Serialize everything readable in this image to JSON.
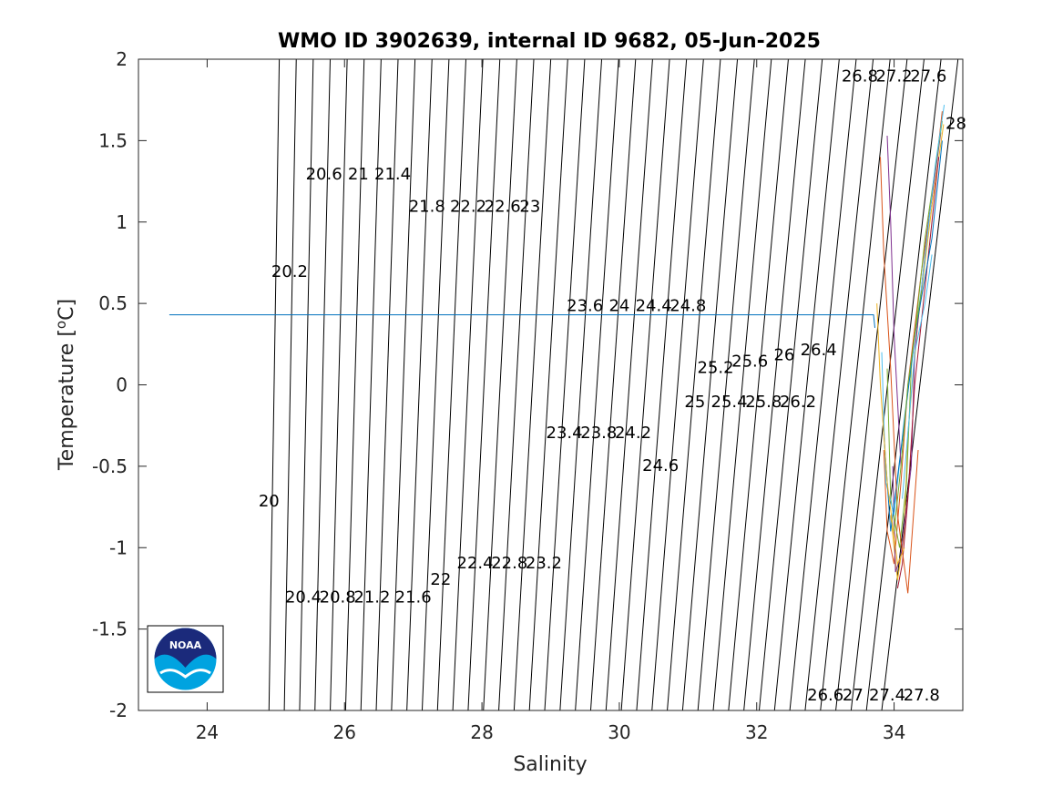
{
  "chart_data": {
    "type": "line",
    "title": "WMO ID 3902639, internal ID 9682, 05-Jun-2025",
    "xlabel": "Salinity",
    "ylabel_main": "Temperature [",
    "ylabel_sup": "o",
    "ylabel_end": "C]",
    "xlim": [
      23,
      35
    ],
    "ylim": [
      -2,
      2
    ],
    "xticks": [
      24,
      26,
      28,
      30,
      32,
      34
    ],
    "yticks": [
      -2,
      -1.5,
      -1,
      -0.5,
      0,
      0.5,
      1,
      1.5,
      2
    ],
    "grid": false,
    "contour_type": "density isopycnals",
    "contour_levels": [
      20,
      20.2,
      20.4,
      20.6,
      20.8,
      21,
      21.2,
      21.4,
      21.6,
      21.8,
      22,
      22.2,
      22.4,
      22.6,
      22.8,
      23,
      23.2,
      23.4,
      23.6,
      23.8,
      24,
      24.2,
      24.4,
      24.6,
      24.8,
      25,
      25.2,
      25.4,
      25.6,
      25.8,
      26,
      26.2,
      26.4,
      26.6,
      26.8,
      27,
      27.2,
      27.4,
      27.6,
      27.8,
      28
    ],
    "contour_labels": [
      {
        "text": "20",
        "s": 24.9,
        "t": -0.72
      },
      {
        "text": "20.2",
        "s": 25.2,
        "t": 0.69
      },
      {
        "text": "20.4",
        "s": 25.4,
        "t": -1.31
      },
      {
        "text": "20.6",
        "s": 25.7,
        "t": 1.29
      },
      {
        "text": "20.8",
        "s": 25.9,
        "t": -1.31
      },
      {
        "text": "21",
        "s": 26.2,
        "t": 1.29
      },
      {
        "text": "21.2",
        "s": 26.4,
        "t": -1.31
      },
      {
        "text": "21.4",
        "s": 26.7,
        "t": 1.29
      },
      {
        "text": "21.6",
        "s": 27.0,
        "t": -1.31
      },
      {
        "text": "21.8",
        "s": 27.2,
        "t": 1.09
      },
      {
        "text": "22",
        "s": 27.4,
        "t": -1.2
      },
      {
        "text": "22.2",
        "s": 27.8,
        "t": 1.09
      },
      {
        "text": "22.4",
        "s": 27.9,
        "t": -1.1
      },
      {
        "text": "22.6",
        "s": 28.3,
        "t": 1.09
      },
      {
        "text": "22.8",
        "s": 28.4,
        "t": -1.1
      },
      {
        "text": "23",
        "s": 28.7,
        "t": 1.09
      },
      {
        "text": "23.2",
        "s": 28.9,
        "t": -1.1
      },
      {
        "text": "23.4",
        "s": 29.2,
        "t": -0.3
      },
      {
        "text": "23.6",
        "s": 29.5,
        "t": 0.48
      },
      {
        "text": "23.8",
        "s": 29.7,
        "t": -0.3
      },
      {
        "text": "24",
        "s": 30.0,
        "t": 0.48
      },
      {
        "text": "24.2",
        "s": 30.2,
        "t": -0.3
      },
      {
        "text": "24.4",
        "s": 30.5,
        "t": 0.48
      },
      {
        "text": "24.6",
        "s": 30.6,
        "t": -0.5
      },
      {
        "text": "24.8",
        "s": 31.0,
        "t": 0.48
      },
      {
        "text": "25",
        "s": 31.1,
        "t": -0.11
      },
      {
        "text": "25.2",
        "s": 31.4,
        "t": 0.1
      },
      {
        "text": "25.4",
        "s": 31.6,
        "t": -0.11
      },
      {
        "text": "25.6",
        "s": 31.9,
        "t": 0.14
      },
      {
        "text": "25.8",
        "s": 32.1,
        "t": -0.11
      },
      {
        "text": "26",
        "s": 32.4,
        "t": 0.18
      },
      {
        "text": "26.2",
        "s": 32.6,
        "t": -0.11
      },
      {
        "text": "26.4",
        "s": 32.9,
        "t": 0.21
      },
      {
        "text": "26.6",
        "s": 33.0,
        "t": -1.91
      },
      {
        "text": "26.8",
        "s": 33.5,
        "t": 1.89
      },
      {
        "text": "27",
        "s": 33.4,
        "t": -1.91
      },
      {
        "text": "27.2",
        "s": 34.0,
        "t": 1.89
      },
      {
        "text": "27.4",
        "s": 33.9,
        "t": -1.91
      },
      {
        "text": "27.6",
        "s": 34.5,
        "t": 1.89
      },
      {
        "text": "27.8",
        "s": 34.4,
        "t": -1.91
      },
      {
        "text": "28",
        "s": 34.9,
        "t": 1.6
      }
    ],
    "series": [
      {
        "color": "#0072bd",
        "x": [
          23.45,
          33.7,
          33.72
        ],
        "y": [
          0.43,
          0.43,
          0.35
        ]
      },
      {
        "color": "#d95319",
        "x": [
          34.7,
          34.6,
          34.4,
          34.2,
          34.1,
          34.0,
          33.9,
          33.85
        ],
        "y": [
          1.68,
          1.3,
          0.7,
          0.0,
          -0.6,
          -1.1,
          -0.9,
          -0.4
        ]
      },
      {
        "color": "#edb120",
        "x": [
          34.72,
          34.55,
          34.35,
          34.2,
          34.15,
          34.05,
          33.95
        ],
        "y": [
          1.6,
          1.1,
          0.4,
          -0.3,
          -0.9,
          -1.2,
          -0.8
        ]
      },
      {
        "color": "#7e2f8e",
        "x": [
          34.68,
          34.5,
          34.3,
          34.25,
          34.1,
          34.02,
          33.98
        ],
        "y": [
          1.55,
          1.0,
          0.2,
          -0.5,
          -1.05,
          -1.15,
          -0.5
        ]
      },
      {
        "color": "#77ac30",
        "x": [
          34.7,
          34.45,
          34.25,
          34.18,
          34.08,
          33.95,
          33.9
        ],
        "y": [
          1.62,
          0.9,
          0.1,
          -0.6,
          -1.0,
          -0.7,
          0.1
        ]
      },
      {
        "color": "#4dbeee",
        "x": [
          34.73,
          34.6,
          34.4,
          34.15,
          34.0,
          33.88,
          33.82
        ],
        "y": [
          1.72,
          1.35,
          0.6,
          -0.2,
          -0.8,
          -0.6,
          0.2
        ]
      },
      {
        "color": "#a2142f",
        "x": [
          34.65,
          34.5,
          34.3,
          34.2,
          34.12,
          34.05
        ],
        "y": [
          1.4,
          0.8,
          0.0,
          -0.7,
          -1.1,
          -1.25
        ]
      },
      {
        "color": "#0072bd",
        "x": [
          34.7,
          34.55,
          34.3,
          34.1,
          33.95,
          33.85
        ],
        "y": [
          1.5,
          0.9,
          0.3,
          -0.4,
          -0.9,
          -0.3
        ]
      },
      {
        "color": "#d95319",
        "x": [
          33.8,
          33.85,
          33.95,
          34.05,
          34.2,
          34.35
        ],
        "y": [
          1.4,
          0.8,
          0.1,
          -0.8,
          -1.28,
          -0.4
        ]
      },
      {
        "color": "#edb120",
        "x": [
          33.75,
          33.8,
          33.9,
          34.05,
          34.15
        ],
        "y": [
          0.5,
          0.0,
          -0.6,
          -1.1,
          -1.0
        ]
      },
      {
        "color": "#7e2f8e",
        "x": [
          33.9,
          33.95,
          34.0,
          34.1
        ],
        "y": [
          1.53,
          1.0,
          0.3,
          -0.5
        ]
      },
      {
        "color": "#77ac30",
        "x": [
          34.4,
          34.3,
          34.2,
          34.1,
          34.0
        ],
        "y": [
          0.58,
          0.3,
          0.0,
          -0.5,
          -0.9
        ]
      },
      {
        "color": "#4dbeee",
        "x": [
          34.55,
          34.45,
          34.3,
          34.2,
          34.12
        ],
        "y": [
          0.8,
          0.5,
          0.2,
          -0.3,
          -0.7
        ]
      }
    ]
  },
  "logo": {
    "text": "NOAA"
  }
}
